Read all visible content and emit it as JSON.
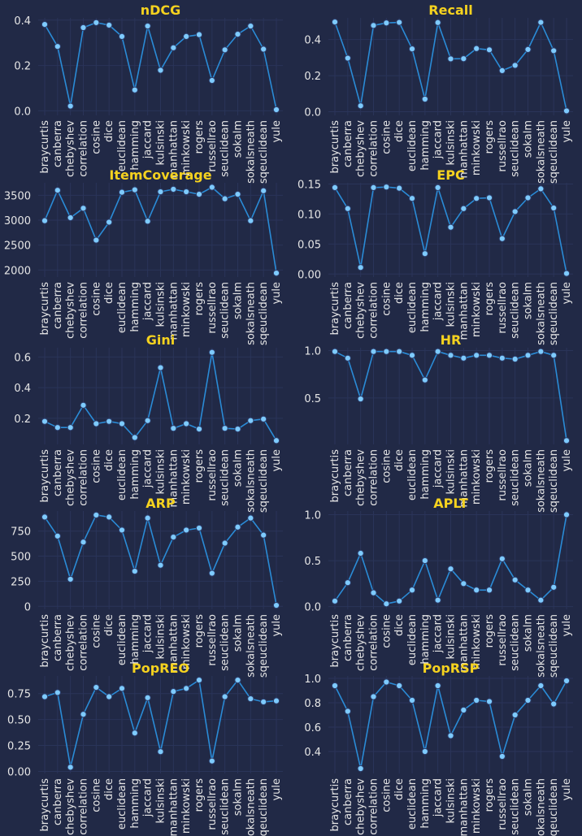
{
  "theme": {
    "background": "#212946",
    "grid": "#2a3459",
    "line": "#2a8bd6",
    "marker_fill": "#7ecbff",
    "marker_edge": "#2d3e6a",
    "tick_text": "#e6e6e6",
    "title": "#f5d21f"
  },
  "chart_data": [
    {
      "type": "line",
      "title": "nDCG",
      "categories": [
        "braycurtis",
        "canberra",
        "chebyshev",
        "correlation",
        "cosine",
        "dice",
        "euclidean",
        "hamming",
        "jaccard",
        "kulsinski",
        "manhattan",
        "minkowski",
        "rogers",
        "russellrao",
        "seuclidean",
        "sokalm",
        "sokalsneath",
        "sqeuclidean",
        "yule"
      ],
      "values": [
        0.381,
        0.284,
        0.021,
        0.367,
        0.389,
        0.378,
        0.328,
        0.092,
        0.374,
        0.179,
        0.278,
        0.328,
        0.336,
        0.134,
        0.269,
        0.338,
        0.374,
        0.272,
        0.005
      ],
      "ylim": [
        -0.02,
        0.41
      ],
      "yticks": [
        0.0,
        0.2,
        0.4
      ],
      "ytick_labels": [
        "0.0",
        "0.2",
        "0.4"
      ],
      "grid": true
    },
    {
      "type": "line",
      "title": "Recall",
      "categories": [
        "braycurtis",
        "canberra",
        "chebyshev",
        "correlation",
        "cosine",
        "dice",
        "euclidean",
        "hamming",
        "jaccard",
        "kulsinski",
        "manhattan",
        "minkowski",
        "rogers",
        "russellrao",
        "seuclidean",
        "sokalm",
        "sokalsneath",
        "sqeuclidean",
        "yule"
      ],
      "values": [
        0.497,
        0.297,
        0.033,
        0.478,
        0.492,
        0.495,
        0.348,
        0.07,
        0.494,
        0.293,
        0.294,
        0.35,
        0.343,
        0.228,
        0.257,
        0.345,
        0.495,
        0.338,
        0.005
      ],
      "ylim": [
        -0.02,
        0.52
      ],
      "yticks": [
        0.0,
        0.2,
        0.4
      ],
      "ytick_labels": [
        "0.0",
        "0.2",
        "0.4"
      ],
      "grid": true
    },
    {
      "type": "line",
      "title": "ItemCoverage",
      "categories": [
        "braycurtis",
        "canberra",
        "chebyshev",
        "correlation",
        "cosine",
        "dice",
        "euclidean",
        "hamming",
        "jaccard",
        "kulsinski",
        "manhattan",
        "minkowski",
        "rogers",
        "russellrao",
        "seuclidean",
        "sokalm",
        "sokalsneath",
        "sqeuclidean",
        "yule"
      ],
      "values": [
        2990,
        3600,
        3050,
        3240,
        2600,
        2960,
        3560,
        3610,
        2980,
        3570,
        3620,
        3570,
        3520,
        3660,
        3430,
        3520,
        2990,
        3590,
        1940
      ],
      "ylim": [
        1860,
        3750
      ],
      "yticks": [
        2000,
        2500,
        3000,
        3500
      ],
      "ytick_labels": [
        "2000",
        "2500",
        "3000",
        "3500"
      ],
      "grid": true
    },
    {
      "type": "line",
      "title": "EPC",
      "categories": [
        "braycurtis",
        "canberra",
        "chebyshev",
        "correlation",
        "cosine",
        "dice",
        "euclidean",
        "hamming",
        "jaccard",
        "kulsinski",
        "manhattan",
        "minkowski",
        "rogers",
        "russellrao",
        "seuclidean",
        "sokalm",
        "sokalsneath",
        "sqeuclidean",
        "yule"
      ],
      "values": [
        0.144,
        0.109,
        0.011,
        0.144,
        0.145,
        0.143,
        0.126,
        0.034,
        0.144,
        0.078,
        0.109,
        0.126,
        0.127,
        0.059,
        0.104,
        0.127,
        0.142,
        0.11,
        0.001
      ],
      "ylim": [
        -0.005,
        0.152
      ],
      "yticks": [
        0.0,
        0.05,
        0.1,
        0.15
      ],
      "ytick_labels": [
        "0.00",
        "0.05",
        "0.10",
        "0.15"
      ],
      "grid": true
    },
    {
      "type": "line",
      "title": "Gini",
      "categories": [
        "braycurtis",
        "canberra",
        "chebyshev",
        "correlation",
        "cosine",
        "dice",
        "euclidean",
        "hamming",
        "jaccard",
        "kulsinski",
        "manhattan",
        "minkowski",
        "rogers",
        "russellrao",
        "seuclidean",
        "sokalm",
        "sokalsneath",
        "sqeuclidean",
        "yule"
      ],
      "values": [
        0.18,
        0.14,
        0.14,
        0.285,
        0.165,
        0.18,
        0.165,
        0.075,
        0.185,
        0.53,
        0.135,
        0.165,
        0.13,
        0.63,
        0.135,
        0.13,
        0.185,
        0.195,
        0.055
      ],
      "ylim": [
        0.03,
        0.66
      ],
      "yticks": [
        0.2,
        0.4,
        0.6
      ],
      "ytick_labels": [
        "0.2",
        "0.4",
        "0.6"
      ],
      "grid": true
    },
    {
      "type": "line",
      "title": "HR",
      "categories": [
        "braycurtis",
        "canberra",
        "chebyshev",
        "correlation",
        "cosine",
        "dice",
        "euclidean",
        "hamming",
        "jaccard",
        "kulsinski",
        "manhattan",
        "minkowski",
        "rogers",
        "russellrao",
        "seuclidean",
        "sokalm",
        "sokalsneath",
        "sqeuclidean",
        "yule"
      ],
      "values": [
        0.99,
        0.92,
        0.49,
        0.99,
        0.99,
        0.99,
        0.95,
        0.69,
        0.99,
        0.95,
        0.92,
        0.95,
        0.95,
        0.92,
        0.91,
        0.95,
        0.99,
        0.95,
        0.05
      ],
      "ylim": [
        0.01,
        1.03
      ],
      "yticks": [
        0.5,
        1.0
      ],
      "ytick_labels": [
        "0.5",
        "1.0"
      ],
      "grid": true
    },
    {
      "type": "line",
      "title": "ARP",
      "categories": [
        "braycurtis",
        "canberra",
        "chebyshev",
        "correlation",
        "cosine",
        "dice",
        "euclidean",
        "hamming",
        "jaccard",
        "kulsinski",
        "manhattan",
        "minkowski",
        "rogers",
        "russellrao",
        "seuclidean",
        "sokalm",
        "sokalsneath",
        "sqeuclidean",
        "yule"
      ],
      "values": [
        890,
        700,
        270,
        640,
        910,
        890,
        760,
        350,
        880,
        410,
        690,
        760,
        780,
        330,
        630,
        790,
        880,
        710,
        10
      ],
      "ylim": [
        -30,
        950
      ],
      "yticks": [
        0,
        250,
        500,
        750
      ],
      "ytick_labels": [
        "0",
        "250",
        "500",
        "750"
      ],
      "grid": true
    },
    {
      "type": "line",
      "title": "APLT",
      "categories": [
        "braycurtis",
        "canberra",
        "chebyshev",
        "correlation",
        "cosine",
        "dice",
        "euclidean",
        "hamming",
        "jaccard",
        "kulsinski",
        "manhattan",
        "minkowski",
        "rogers",
        "russellrao",
        "seuclidean",
        "sokalm",
        "sokalsneath",
        "sqeuclidean",
        "yule"
      ],
      "values": [
        0.06,
        0.26,
        0.58,
        0.15,
        0.03,
        0.06,
        0.18,
        0.5,
        0.07,
        0.41,
        0.25,
        0.18,
        0.18,
        0.52,
        0.29,
        0.18,
        0.07,
        0.21,
        1.0
      ],
      "ylim": [
        -0.03,
        1.04
      ],
      "yticks": [
        0.0,
        0.5,
        1.0
      ],
      "ytick_labels": [
        "0.0",
        "0.5",
        "1.0"
      ],
      "grid": true
    },
    {
      "type": "line",
      "title": "PopREO",
      "categories": [
        "braycurtis",
        "canberra",
        "chebyshev",
        "correlation",
        "cosine",
        "dice",
        "euclidean",
        "hamming",
        "jaccard",
        "kulsinski",
        "manhattan",
        "minkowski",
        "rogers",
        "russellrao",
        "seuclidean",
        "sokalm",
        "sokalsneath",
        "sqeuclidean",
        "yule"
      ],
      "values": [
        0.72,
        0.76,
        0.04,
        0.55,
        0.81,
        0.72,
        0.8,
        0.37,
        0.71,
        0.19,
        0.77,
        0.8,
        0.88,
        0.1,
        0.72,
        0.88,
        0.7,
        0.67,
        0.68
      ],
      "ylim": [
        -0.02,
        0.92
      ],
      "yticks": [
        0.0,
        0.25,
        0.5,
        0.75
      ],
      "ytick_labels": [
        "0.00",
        "0.25",
        "0.50",
        "0.75"
      ],
      "grid": true
    },
    {
      "type": "line",
      "title": "PopRSP",
      "categories": [
        "braycurtis",
        "canberra",
        "chebyshev",
        "correlation",
        "cosine",
        "dice",
        "euclidean",
        "hamming",
        "jaccard",
        "kulsinski",
        "manhattan",
        "minkowski",
        "rogers",
        "russellrao",
        "seuclidean",
        "sokalm",
        "sokalsneath",
        "sqeuclidean",
        "yule"
      ],
      "values": [
        0.94,
        0.73,
        0.26,
        0.85,
        0.97,
        0.94,
        0.82,
        0.4,
        0.94,
        0.53,
        0.74,
        0.82,
        0.81,
        0.36,
        0.7,
        0.82,
        0.94,
        0.79,
        0.98
      ],
      "ylim": [
        0.22,
        1.02
      ],
      "yticks": [
        0.4,
        0.6,
        0.8,
        1.0
      ],
      "ytick_labels": [
        "0.4",
        "0.6",
        "0.8",
        "1.0"
      ],
      "grid": true
    }
  ]
}
